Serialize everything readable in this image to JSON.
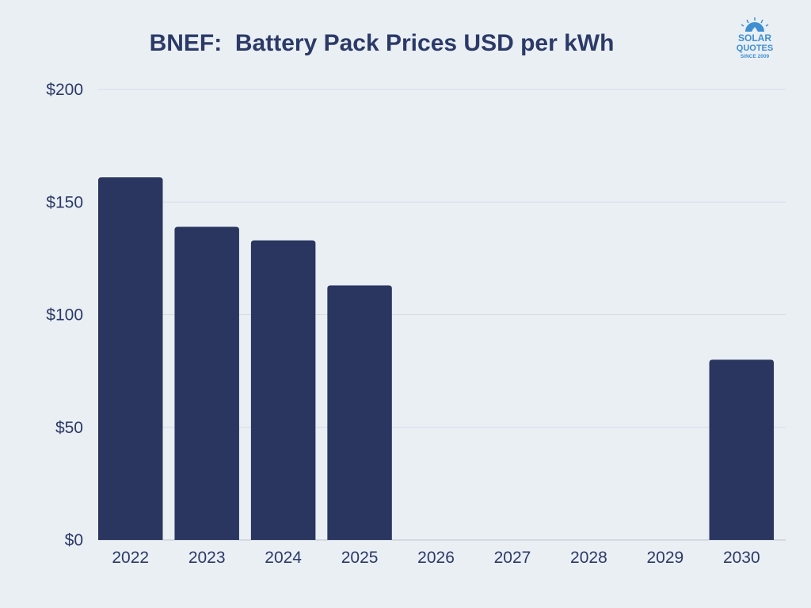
{
  "chart_data": {
    "type": "bar",
    "title": "BNEF:  Battery Pack Prices USD per kWh",
    "xlabel": "",
    "ylabel": "",
    "categories": [
      "2022",
      "2023",
      "2024",
      "2025",
      "2026",
      "2027",
      "2028",
      "2029",
      "2030"
    ],
    "values": [
      161,
      139,
      133,
      113,
      null,
      null,
      null,
      null,
      80
    ],
    "ylim": [
      0,
      200
    ],
    "yticks": [
      0,
      50,
      100,
      150,
      200
    ],
    "ytick_labels": [
      "$0",
      "$50",
      "$100",
      "$150",
      "$200"
    ],
    "grid": true,
    "legend": "none",
    "colors": {
      "bar": "#2a3660",
      "text": "#2b3a67",
      "grid": "#d3dbe3",
      "background": "#eaeff4"
    }
  },
  "logo": {
    "line1": "SOLAR",
    "line2": "QUOTES",
    "line3": "SINCE 2009",
    "icon": "sun-house-icon",
    "color": "#3d8fd1"
  }
}
